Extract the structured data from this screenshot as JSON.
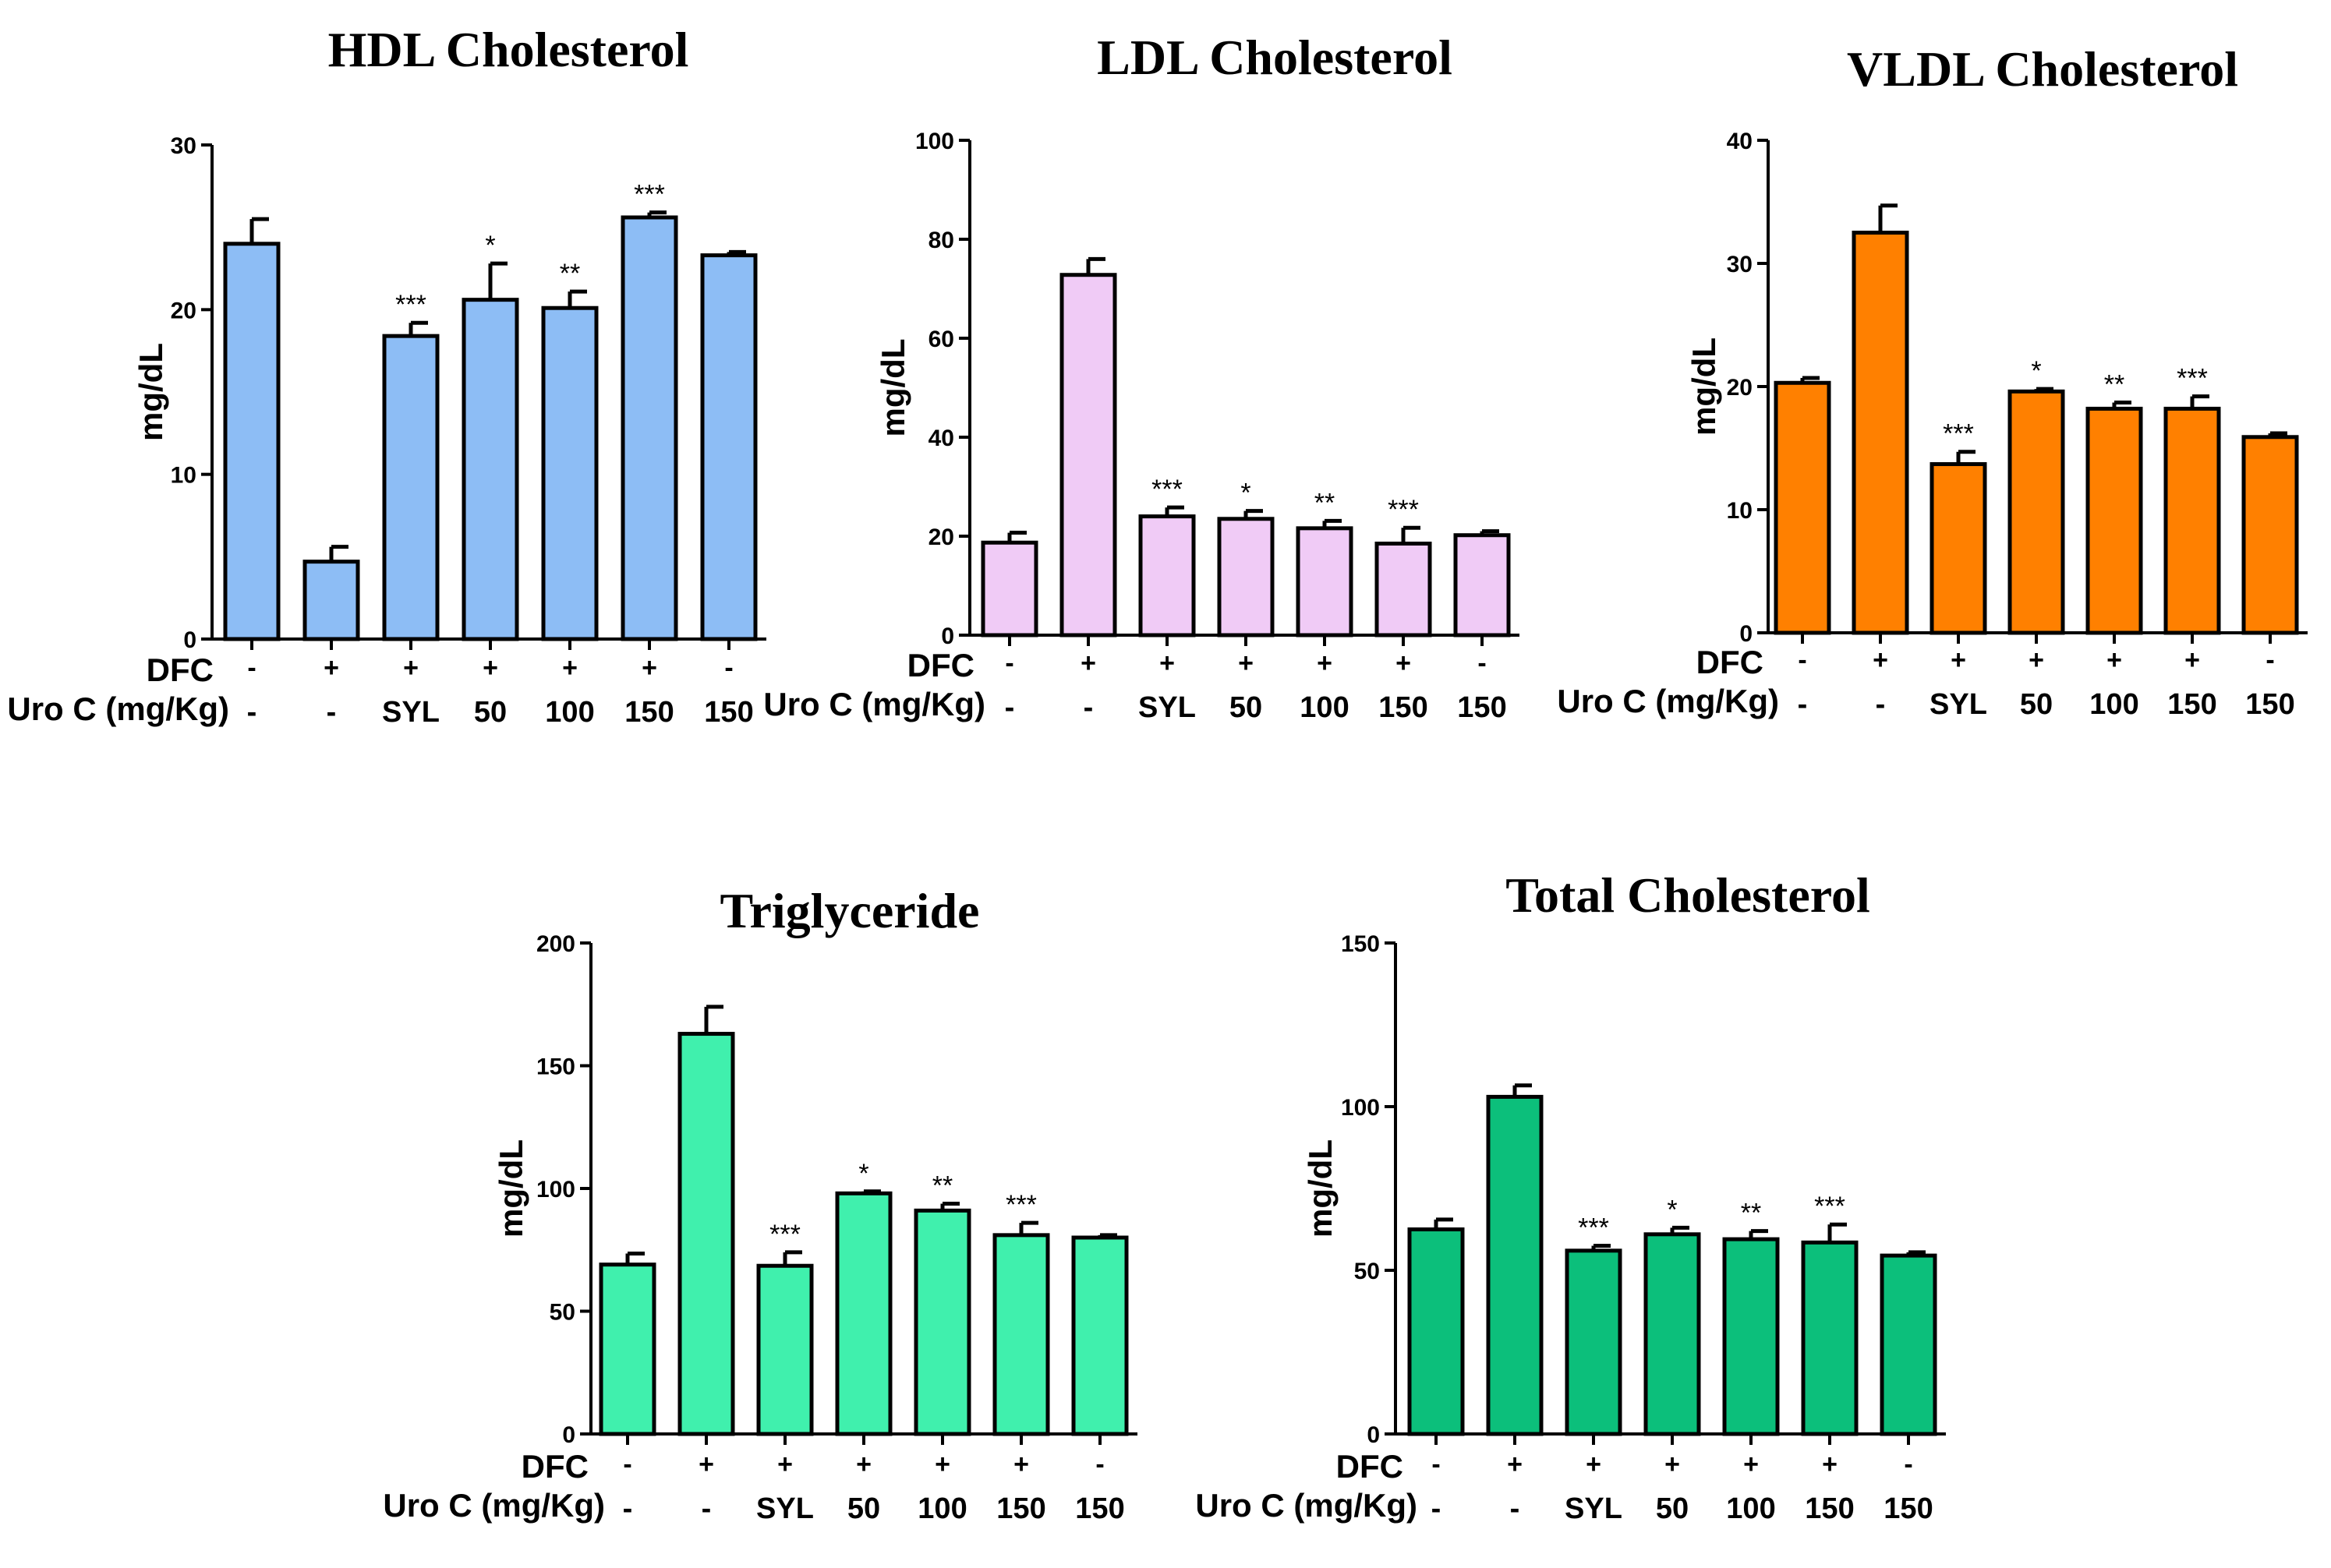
{
  "figure": {
    "row_labels": {
      "dfc": "DFC",
      "uro": "Uro C (mg/Kg)"
    },
    "dfc_values": [
      "-",
      "+",
      "+",
      "+",
      "+",
      "+",
      "-"
    ],
    "uro_values": [
      "-",
      "-",
      "SYL",
      "50",
      "100",
      "150",
      "150"
    ]
  },
  "chart_data": [
    {
      "type": "bar",
      "title": "HDL Cholesterol",
      "ylabel": "mg/dL",
      "xlabel": "",
      "ylim": [
        0,
        30
      ],
      "yticks": [
        0,
        10,
        20,
        30
      ],
      "categories": [
        "-/-",
        "+/-",
        "+/SYL",
        "+/50",
        "+/100",
        "+/150",
        "-/150"
      ],
      "values": [
        24.0,
        4.7,
        18.4,
        20.6,
        20.1,
        25.6,
        23.3
      ],
      "errors": [
        1.5,
        0.9,
        0.8,
        2.2,
        1.0,
        0.3,
        0.2
      ],
      "significance": [
        "",
        "",
        "***",
        "*",
        "**",
        "***",
        ""
      ],
      "color": "#8dbdf5"
    },
    {
      "type": "bar",
      "title": "LDL Cholesterol",
      "ylabel": "mg/dL",
      "xlabel": "",
      "ylim": [
        0,
        100
      ],
      "yticks": [
        0,
        20,
        40,
        60,
        80,
        100
      ],
      "categories": [
        "-/-",
        "+/-",
        "+/SYL",
        "+/50",
        "+/100",
        "+/150",
        "-/150"
      ],
      "values": [
        18.7,
        72.8,
        24.0,
        23.5,
        21.6,
        18.5,
        20.2
      ],
      "errors": [
        2.0,
        3.2,
        1.8,
        1.6,
        1.5,
        3.2,
        0.8
      ],
      "significance": [
        "",
        "",
        "***",
        "*",
        "**",
        "***",
        ""
      ],
      "color": "#f0cbf6"
    },
    {
      "type": "bar",
      "title": "VLDL Cholesterol",
      "ylabel": "mg/dL",
      "xlabel": "",
      "ylim": [
        0,
        40
      ],
      "yticks": [
        0,
        10,
        20,
        30,
        40
      ],
      "categories": [
        "-/-",
        "+/-",
        "+/SYL",
        "+/50",
        "+/100",
        "+/150",
        "-/150"
      ],
      "values": [
        20.3,
        32.5,
        13.7,
        19.6,
        18.2,
        18.2,
        15.9
      ],
      "errors": [
        0.4,
        2.2,
        1.0,
        0.2,
        0.5,
        1.0,
        0.3
      ],
      "significance": [
        "",
        "",
        "***",
        "*",
        "**",
        "***",
        ""
      ],
      "color": "#ff8000"
    },
    {
      "type": "bar",
      "title": "Triglyceride",
      "ylabel": "mg/dL",
      "xlabel": "",
      "ylim": [
        0,
        200
      ],
      "yticks": [
        0,
        50,
        100,
        150,
        200
      ],
      "categories": [
        "-/-",
        "+/-",
        "+/SYL",
        "+/50",
        "+/100",
        "+/150",
        "-/150"
      ],
      "values": [
        69,
        163,
        68.5,
        98,
        91,
        81,
        80
      ],
      "errors": [
        4.5,
        11,
        5.5,
        0.8,
        2.8,
        5.0,
        1.0
      ],
      "significance": [
        "",
        "",
        "***",
        "*",
        "**",
        "***",
        ""
      ],
      "color": "#40f0ad"
    },
    {
      "type": "bar",
      "title": "Total Cholesterol",
      "ylabel": "mg/dL",
      "xlabel": "",
      "ylim": [
        0,
        150
      ],
      "yticks": [
        0,
        50,
        100,
        150
      ],
      "categories": [
        "-/-",
        "+/-",
        "+/SYL",
        "+/50",
        "+/100",
        "+/150",
        "-/150"
      ],
      "values": [
        62.5,
        103,
        56,
        61,
        59.5,
        58.5,
        54.5
      ],
      "errors": [
        3.0,
        3.5,
        1.5,
        2.0,
        2.5,
        5.5,
        1.0
      ],
      "significance": [
        "",
        "",
        "***",
        "*",
        "**",
        "***",
        ""
      ],
      "color": "#0cbf7b"
    }
  ]
}
